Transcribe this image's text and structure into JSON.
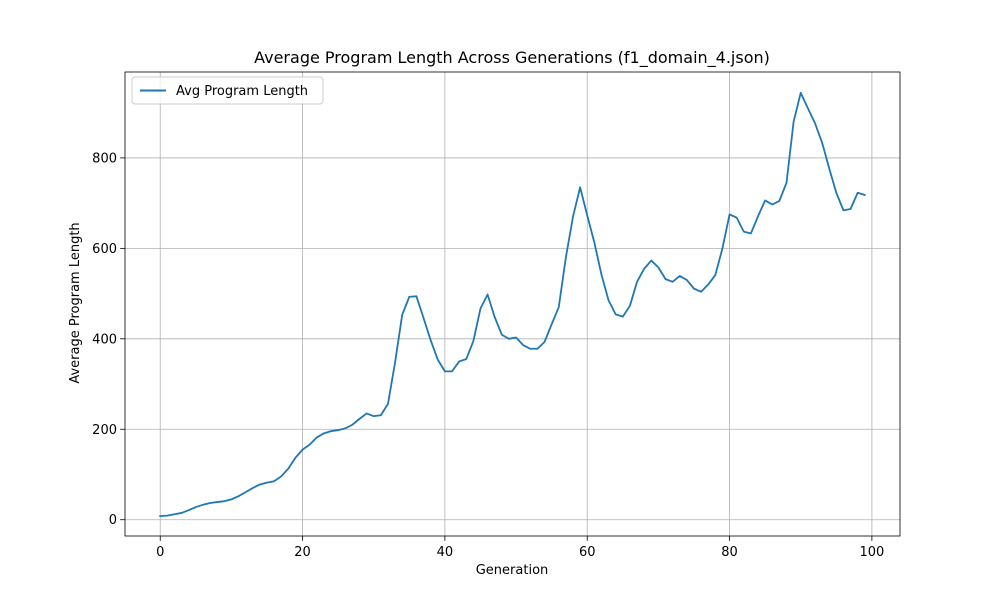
{
  "chart_data": {
    "type": "line",
    "title": "Average Program Length Across Generations (f1_domain_4.json)",
    "xlabel": "Generation",
    "ylabel": "Average Program Length",
    "xlim": [
      -4.95,
      103.95
    ],
    "ylim": [
      -36,
      990
    ],
    "xticks": [
      0,
      20,
      40,
      60,
      80,
      100
    ],
    "yticks": [
      0,
      200,
      400,
      600,
      800
    ],
    "grid": true,
    "legend_position": "upper left",
    "series": [
      {
        "name": "Avg Program Length",
        "color": "#1f77b4",
        "x": [
          0,
          1,
          2,
          3,
          4,
          5,
          6,
          7,
          8,
          9,
          10,
          11,
          12,
          13,
          14,
          15,
          16,
          17,
          18,
          19,
          20,
          21,
          22,
          23,
          24,
          25,
          26,
          27,
          28,
          29,
          30,
          31,
          32,
          33,
          34,
          35,
          36,
          37,
          38,
          39,
          40,
          41,
          42,
          43,
          44,
          45,
          46,
          47,
          48,
          49,
          50,
          51,
          52,
          53,
          54,
          55,
          56,
          57,
          58,
          59,
          60,
          61,
          62,
          63,
          64,
          65,
          66,
          67,
          68,
          69,
          70,
          71,
          72,
          73,
          74,
          75,
          76,
          77,
          78,
          79,
          80,
          81,
          82,
          83,
          84,
          85,
          86,
          87,
          88,
          89,
          90,
          91,
          92,
          93,
          94,
          95,
          96,
          97,
          98,
          99
        ],
        "y": [
          8,
          9,
          12,
          15,
          21,
          28,
          33,
          37,
          39,
          41,
          45,
          52,
          61,
          70,
          78,
          82,
          85,
          96,
          113,
          137,
          155,
          166,
          182,
          191,
          196,
          198,
          202,
          210,
          223,
          235,
          229,
          231,
          256,
          348,
          453,
          493,
          494,
          446,
          397,
          354,
          328,
          328,
          350,
          355,
          395,
          467,
          498,
          448,
          409,
          400,
          403,
          386,
          378,
          378,
          393,
          432,
          470,
          580,
          670,
          735,
          673,
          613,
          542,
          485,
          454,
          449,
          473,
          526,
          555,
          573,
          558,
          532,
          526,
          539,
          530,
          511,
          504,
          520,
          541,
          600,
          675,
          668,
          637,
          633,
          671,
          706,
          697,
          705,
          745,
          880,
          944,
          910,
          877,
          834,
          777,
          723,
          684,
          687,
          723,
          718
        ]
      }
    ]
  }
}
